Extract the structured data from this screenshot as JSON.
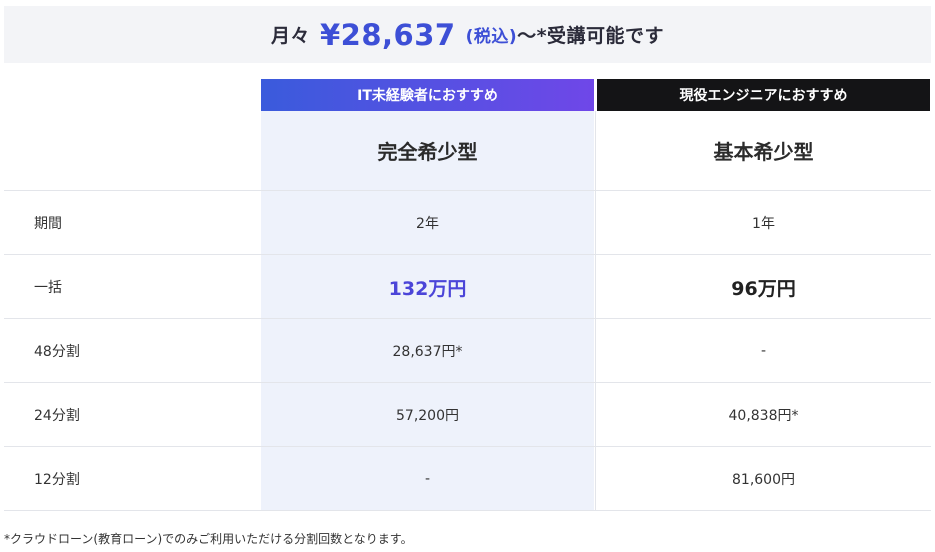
{
  "banner": {
    "prefix": "月々",
    "price": "¥28,637",
    "tax": "(税込)",
    "suffix": "〜*受講可能です"
  },
  "plans": [
    {
      "tag": "IT未経験者におすすめ",
      "name": "完全希少型"
    },
    {
      "tag": "現役エンジニアにおすすめ",
      "name": "基本希少型"
    }
  ],
  "rows": [
    {
      "label": "期間",
      "values": [
        "2年",
        "1年"
      ]
    },
    {
      "label": "一括",
      "values": [
        "132万円",
        "96万円"
      ]
    },
    {
      "label": "48分割",
      "values": [
        "28,637円*",
        "-"
      ]
    },
    {
      "label": "24分割",
      "values": [
        "57,200円",
        "40,838円*"
      ]
    },
    {
      "label": "12分割",
      "values": [
        "-",
        "81,600円"
      ]
    }
  ],
  "note": "*クラウドローン(教育ローン)でのみご利用いただける分割回数となります。",
  "colors": {
    "accent": "#3d4fd6",
    "tag1_gradient_start": "#3a5bdc",
    "tag1_gradient_end": "#6f47e8",
    "tag2_bg": "#141416",
    "highlight_bg": "#eef2fb"
  }
}
